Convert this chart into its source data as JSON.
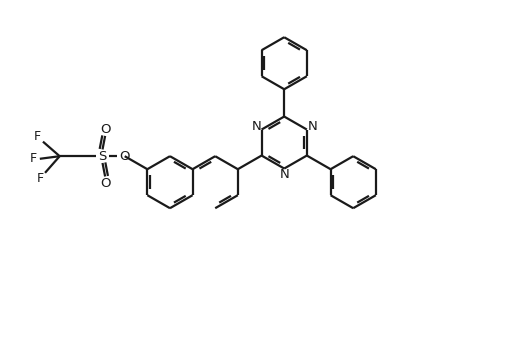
{
  "background_color": "#ffffff",
  "line_color": "#1a1a1a",
  "line_width": 1.6,
  "font_size": 9.5,
  "fig_width": 5.28,
  "fig_height": 3.41,
  "dpi": 100,
  "xlim": [
    0,
    10
  ],
  "ylim": [
    0,
    6.45
  ]
}
